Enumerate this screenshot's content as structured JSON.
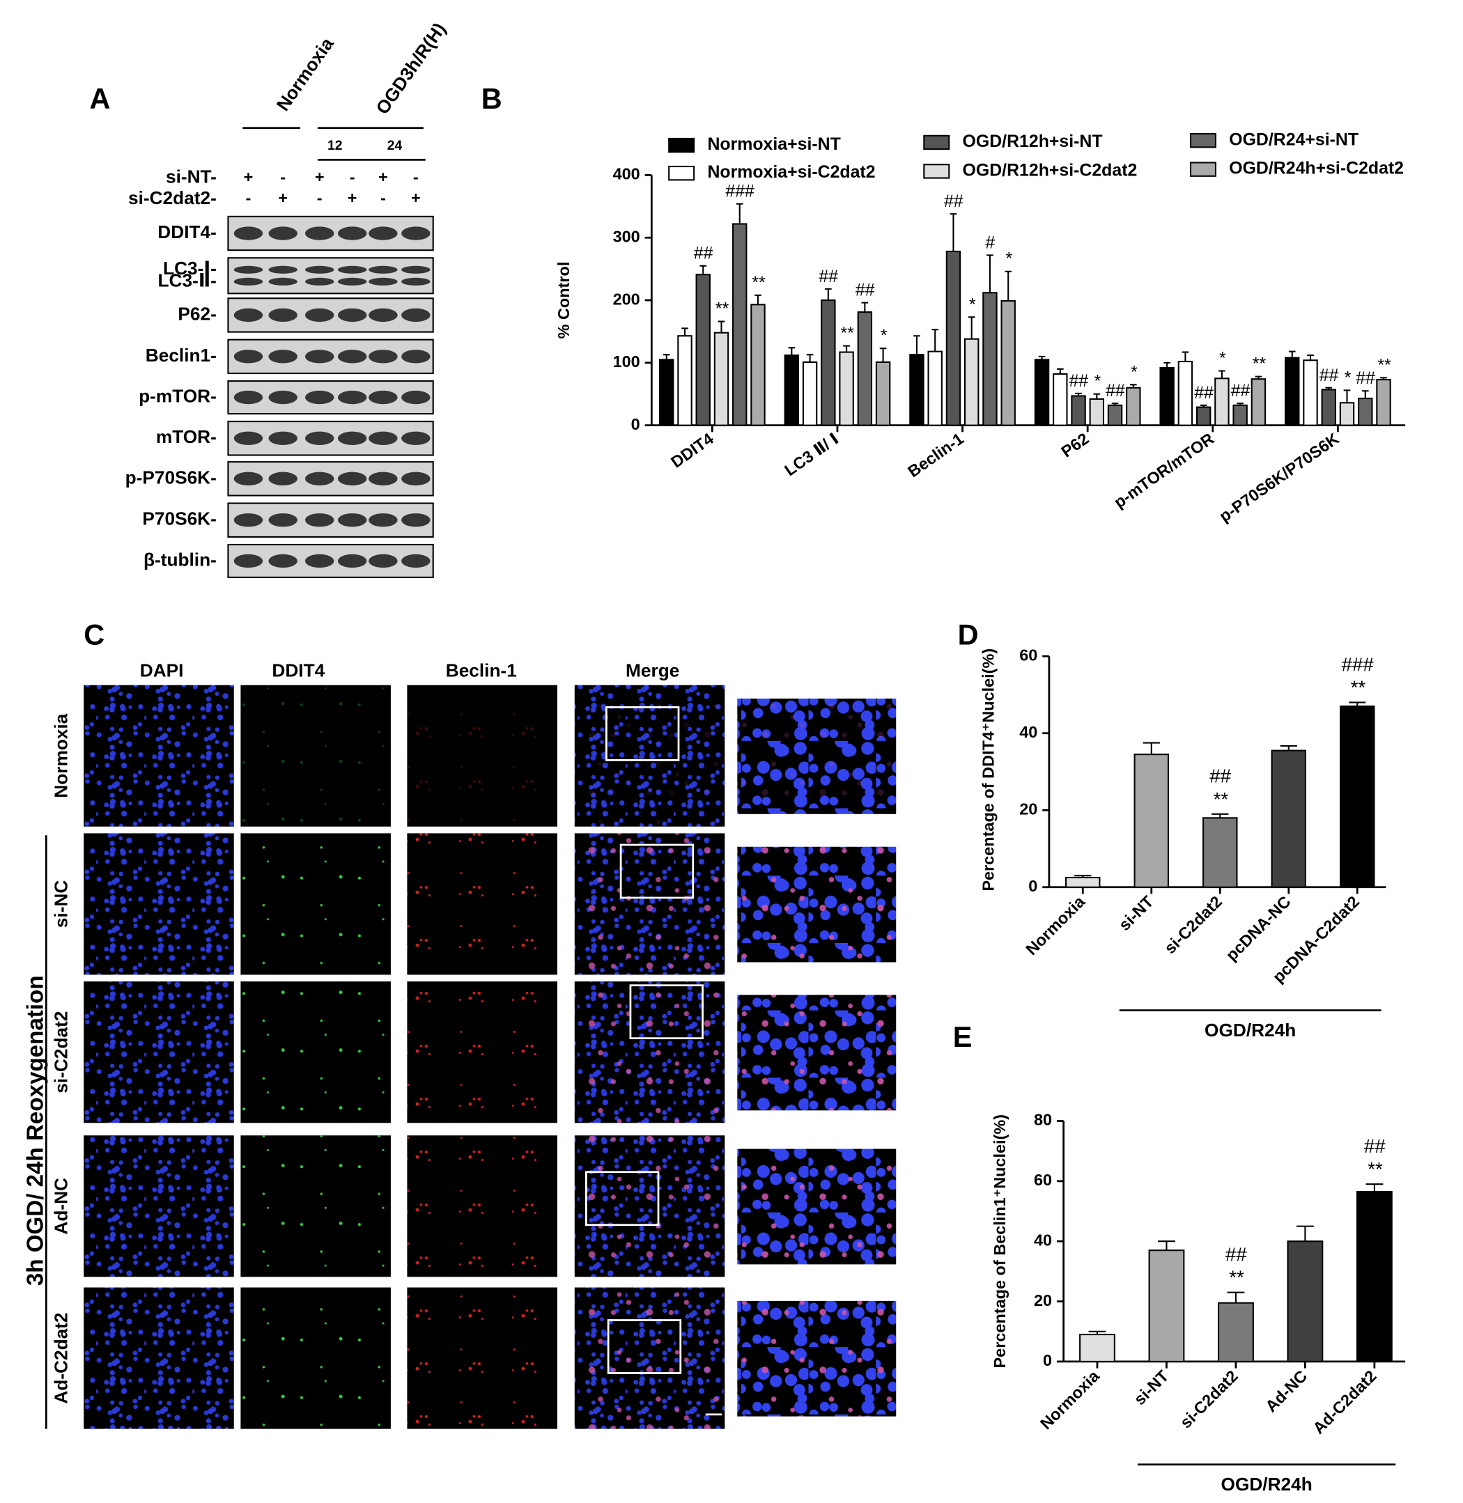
{
  "panel_a": {
    "label": "A",
    "normoxia": "Normoxia",
    "ogd": "OGD3h/R(H)",
    "timepoints": [
      "12",
      "24"
    ],
    "treatments": [
      {
        "name": "si-NT-",
        "signs": [
          "+",
          "-",
          "+",
          "-",
          "+",
          "-"
        ]
      },
      {
        "name": "si-C2dat2-",
        "signs": [
          "-",
          "+",
          "-",
          "+",
          "-",
          "+"
        ]
      }
    ],
    "blots": [
      {
        "labels": [
          "DDIT4-"
        ]
      },
      {
        "labels": [
          "LC3-Ⅰ-",
          "LC3-Ⅱ-"
        ]
      },
      {
        "labels": [
          "P62-"
        ]
      },
      {
        "labels": [
          "Beclin1-"
        ]
      },
      {
        "labels": [
          "p-mTOR-"
        ]
      },
      {
        "labels": [
          "mTOR-"
        ]
      },
      {
        "labels": [
          "p-P70S6K-"
        ]
      },
      {
        "labels": [
          "P70S6K-"
        ]
      },
      {
        "labels": [
          "β-tublin-"
        ]
      }
    ]
  },
  "panel_c": {
    "label": "C",
    "columns": [
      "DAPI",
      "DDIT4",
      "Beclin-1",
      "Merge"
    ],
    "rows": [
      "Normoxia",
      "si-NC",
      "si-C2dat2",
      "Ad-NC",
      "Ad-C2dat2"
    ],
    "condition": "3h OGD/ 24h Reoxygenation"
  },
  "chart_data": [
    {
      "type": "bar",
      "panel": "B",
      "ylabel": "% Control",
      "categories": [
        "DDIT4",
        "LC3 Ⅱ/ Ⅰ",
        "Beclin-1",
        "P62",
        "p-mTOR/mTOR",
        "p-P70S6K/P70S6K"
      ],
      "ylim": [
        0,
        400
      ],
      "yticks": [
        0,
        100,
        200,
        300,
        400
      ],
      "series": [
        {
          "name": "Normoxia+si-NT",
          "color": "#000000",
          "values": [
            105,
            112,
            113,
            105,
            92,
            108
          ],
          "errors": [
            8,
            12,
            30,
            5,
            8,
            10
          ],
          "annotations": [
            null,
            null,
            null,
            null,
            null,
            null
          ]
        },
        {
          "name": "Normoxia+si-C2dat2",
          "color": "#ffffff",
          "values": [
            143,
            101,
            118,
            82,
            102,
            104
          ],
          "errors": [
            12,
            12,
            35,
            8,
            15,
            8
          ],
          "annotations": [
            null,
            null,
            null,
            null,
            null,
            null
          ]
        },
        {
          "name": "OGD/R12h+si-NT",
          "color": "#555555",
          "values": [
            241,
            200,
            278,
            47,
            29,
            57
          ],
          "errors": [
            14,
            18,
            60,
            4,
            3,
            3
          ],
          "annotations": [
            "##",
            "##",
            "##",
            "##",
            "##",
            "##"
          ]
        },
        {
          "name": "OGD/R12h+si-C2dat2",
          "color": "#dddddd",
          "values": [
            148,
            117,
            138,
            42,
            75,
            36
          ],
          "errors": [
            18,
            10,
            35,
            8,
            12,
            20
          ],
          "annotations": [
            "**",
            "**",
            "*",
            "*",
            "*",
            "*"
          ]
        },
        {
          "name": "OGD/R24+si-NT",
          "color": "#666666",
          "values": [
            322,
            181,
            212,
            32,
            32,
            43
          ],
          "errors": [
            32,
            15,
            60,
            3,
            3,
            12
          ],
          "annotations": [
            "###",
            "##",
            "#",
            "##",
            "##",
            "##"
          ]
        },
        {
          "name": "OGD/R24h+si-C2dat2",
          "color": "#aaaaaa",
          "values": [
            193,
            101,
            199,
            60,
            74,
            73
          ],
          "errors": [
            15,
            22,
            47,
            5,
            4,
            3
          ],
          "annotations": [
            "**",
            "*",
            "*",
            "*",
            "**",
            "**"
          ]
        }
      ]
    },
    {
      "type": "bar",
      "panel": "D",
      "ylabel": "Percentage of DDIT4⁺Nuclei(%)",
      "categories": [
        "Normoxia",
        "si-NT",
        "si-C2dat2",
        "pcDNA-NC",
        "pcDNA-C2dat2"
      ],
      "values": [
        2.5,
        34.5,
        18,
        35.5,
        47
      ],
      "errors": [
        0.5,
        3,
        1,
        1.2,
        1
      ],
      "colors": [
        "#e0e0e0",
        "#a8a8a8",
        "#7a7a7a",
        "#404040",
        "#000000"
      ],
      "annotations": [
        null,
        null,
        [
          "##",
          "**"
        ],
        null,
        [
          "###",
          "**"
        ]
      ],
      "group_label": "OGD/R24h",
      "ylim": [
        0,
        60
      ],
      "yticks": [
        0,
        20,
        40,
        60
      ]
    },
    {
      "type": "bar",
      "panel": "E",
      "ylabel": "Percentage of Beclin1⁺Nuclei(%)",
      "categories": [
        "Normoxia",
        "si-NT",
        "si-C2dat2",
        "Ad-NC",
        "Ad-C2dat2"
      ],
      "values": [
        9,
        37,
        19.5,
        40,
        56.5
      ],
      "errors": [
        1,
        3,
        3.5,
        5,
        2.5
      ],
      "colors": [
        "#e0e0e0",
        "#a8a8a8",
        "#7a7a7a",
        "#404040",
        "#000000"
      ],
      "annotations": [
        null,
        null,
        [
          "##",
          "**"
        ],
        null,
        [
          "##",
          "**"
        ]
      ],
      "group_label": "OGD/R24h",
      "ylim": [
        0,
        80
      ],
      "yticks": [
        0,
        20,
        40,
        60,
        80
      ]
    }
  ]
}
